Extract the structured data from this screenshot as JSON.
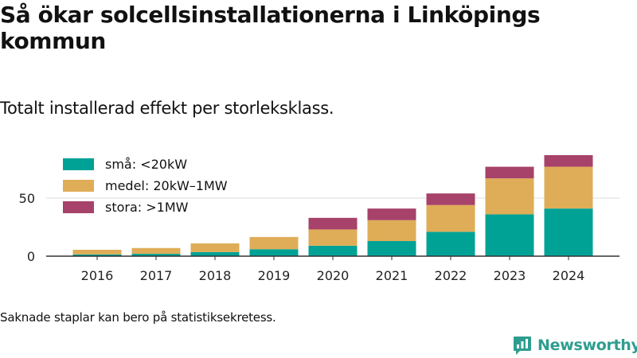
{
  "title": "Så ökar solcellsinstallationerna i Linköpings kommun",
  "subtitle": "Totalt installerad effekt per storleksklass.",
  "footnote": "Saknade staplar kan bero på statistiksekretess.",
  "brand": {
    "name": "Newsworthy",
    "icon": "newsworthy-logo-icon",
    "color": "#2e9d8f"
  },
  "chart_data": {
    "type": "bar",
    "stacked": true,
    "categories": [
      "2016",
      "2017",
      "2018",
      "2019",
      "2020",
      "2021",
      "2022",
      "2023",
      "2024"
    ],
    "series": [
      {
        "name": "små: <20kW",
        "color": "#00a296",
        "values": [
          1.5,
          2,
          3.5,
          6,
          9,
          13,
          21,
          36,
          41
        ]
      },
      {
        "name": "medel: 20kW–1MW",
        "color": "#dfad57",
        "values": [
          4,
          5,
          7.5,
          10.5,
          14,
          18,
          23,
          31,
          36
        ]
      },
      {
        "name": "stora: >1MW",
        "color": "#a7426a",
        "values": [
          0,
          0,
          0,
          0,
          10,
          10,
          10,
          10,
          10
        ]
      }
    ],
    "y_ticks": [
      0,
      50
    ],
    "ylim": [
      0,
      90
    ],
    "grid": true,
    "legend_position": "top-left"
  }
}
